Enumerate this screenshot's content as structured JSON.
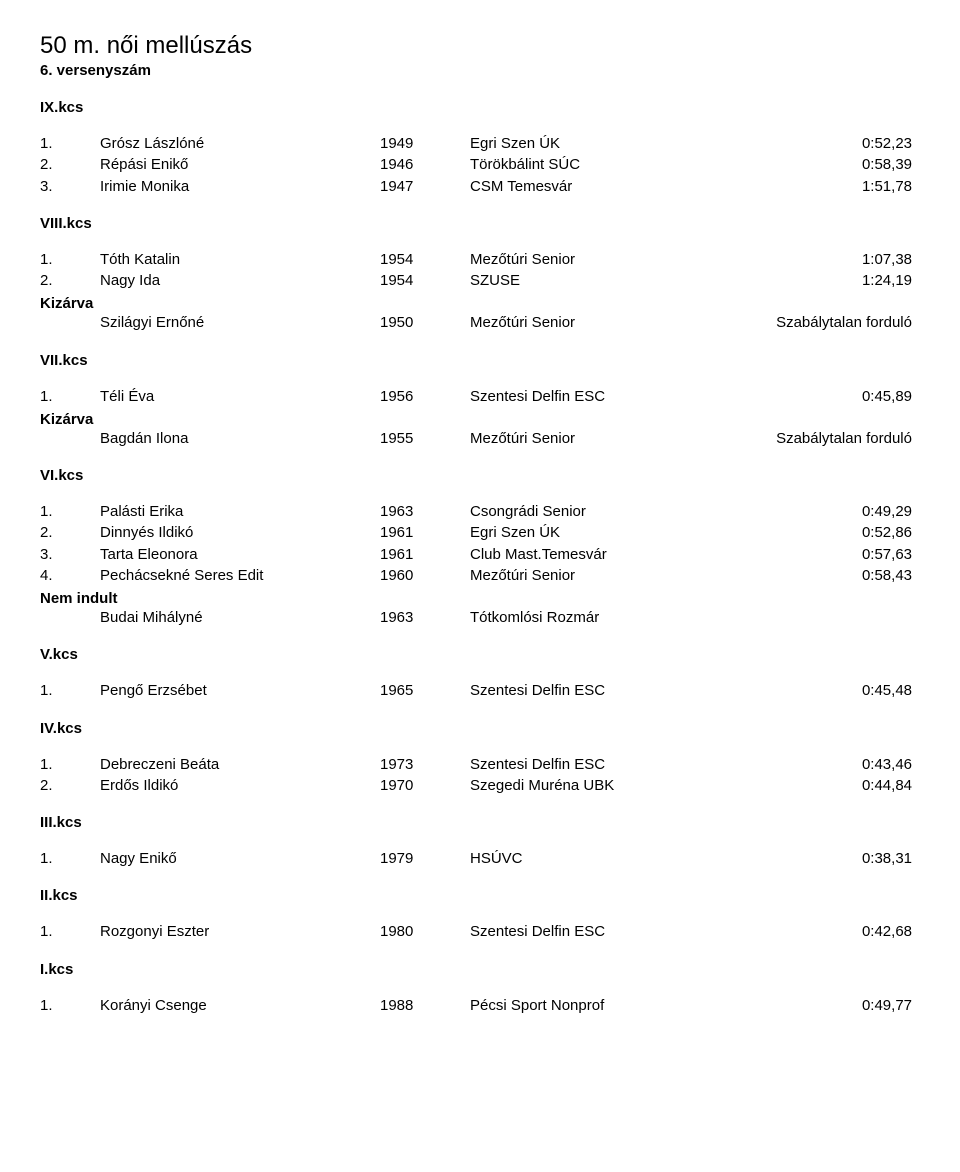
{
  "title": "50 m. női mellúszás",
  "subtitle": "6. versenyszám",
  "sections": [
    {
      "label": "IX.kcs",
      "rows": [
        {
          "rank": "1.",
          "name": "Grósz Lászlóné",
          "year": "1949",
          "club": "Egri Szen ÚK",
          "time": "0:52,23"
        },
        {
          "rank": "2.",
          "name": "Répási Enikő",
          "year": "1946",
          "club": "Törökbálint SÚC",
          "time": "0:58,39"
        },
        {
          "rank": "3.",
          "name": "Irimie Monika",
          "year": "1947",
          "club": "CSM Temesvár",
          "time": "1:51,78"
        }
      ]
    },
    {
      "label": "VIII.kcs",
      "rows": [
        {
          "rank": "1.",
          "name": "Tóth Katalin",
          "year": "1954",
          "club": "Mezőtúri Senior",
          "time": "1:07,38"
        },
        {
          "rank": "2.",
          "name": "Nagy Ida",
          "year": "1954",
          "club": "SZUSE",
          "time": "1:24,19"
        }
      ],
      "note": {
        "label": "Kizárva",
        "rows": [
          {
            "rank": "",
            "name": "Szilágyi Ernőné",
            "year": "1950",
            "club": "Mezőtúri Senior",
            "time": "Szabálytalan forduló"
          }
        ]
      }
    },
    {
      "label": "VII.kcs",
      "rows": [
        {
          "rank": "1.",
          "name": "Téli Éva",
          "year": "1956",
          "club": "Szentesi Delfin ESC",
          "time": "0:45,89"
        }
      ],
      "note": {
        "label": "Kizárva",
        "rows": [
          {
            "rank": "",
            "name": "Bagdán Ilona",
            "year": "1955",
            "club": "Mezőtúri Senior",
            "time": "Szabálytalan forduló"
          }
        ]
      }
    },
    {
      "label": "VI.kcs",
      "rows": [
        {
          "rank": "1.",
          "name": "Palásti Erika",
          "year": "1963",
          "club": "Csongrádi Senior",
          "time": "0:49,29"
        },
        {
          "rank": "2.",
          "name": "Dinnyés Ildikó",
          "year": "1961",
          "club": "Egri Szen ÚK",
          "time": "0:52,86"
        },
        {
          "rank": "3.",
          "name": "Tarta Eleonora",
          "year": "1961",
          "club": "Club Mast.Temesvár",
          "time": "0:57,63"
        },
        {
          "rank": "4.",
          "name": "Pechácsekné Seres Edit",
          "year": "1960",
          "club": "Mezőtúri Senior",
          "time": "0:58,43"
        }
      ],
      "note": {
        "label": "Nem indult",
        "rows": [
          {
            "rank": "",
            "name": "Budai Mihályné",
            "year": "1963",
            "club": "Tótkomlósi Rozmár",
            "time": ""
          }
        ]
      }
    },
    {
      "label": "V.kcs",
      "rows": [
        {
          "rank": "1.",
          "name": "Pengő Erzsébet",
          "year": "1965",
          "club": "Szentesi Delfin ESC",
          "time": "0:45,48"
        }
      ]
    },
    {
      "label": "IV.kcs",
      "rows": [
        {
          "rank": "1.",
          "name": "Debreczeni Beáta",
          "year": "1973",
          "club": "Szentesi Delfin ESC",
          "time": "0:43,46"
        },
        {
          "rank": "2.",
          "name": "Erdős Ildikó",
          "year": "1970",
          "club": "Szegedi Muréna UBK",
          "time": "0:44,84"
        }
      ]
    },
    {
      "label": "III.kcs",
      "rows": [
        {
          "rank": "1.",
          "name": "Nagy Enikő",
          "year": "1979",
          "club": "HSÚVC",
          "time": "0:38,31"
        }
      ]
    },
    {
      "label": "II.kcs",
      "rows": [
        {
          "rank": "1.",
          "name": "Rozgonyi Eszter",
          "year": "1980",
          "club": "Szentesi Delfin ESC",
          "time": "0:42,68"
        }
      ]
    },
    {
      "label": "I.kcs",
      "rows": [
        {
          "rank": "1.",
          "name": "Korányi Csenge",
          "year": "1988",
          "club": "Pécsi Sport Nonprof",
          "time": "0:49,77"
        }
      ]
    }
  ]
}
